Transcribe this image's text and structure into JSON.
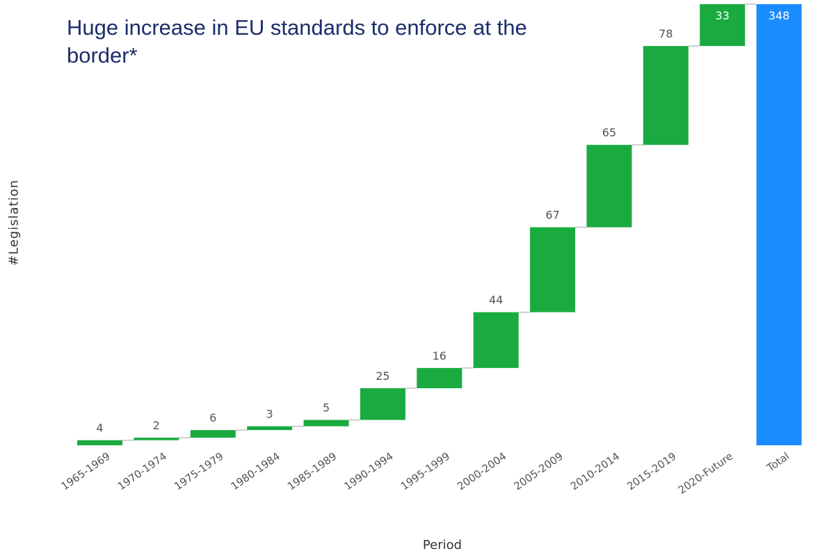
{
  "slide": {
    "title": "Huge increase in EU standards to enforce at the border*"
  },
  "colors": {
    "increase": "#1aab40",
    "total": "#1a8cff",
    "connector": "#bfbfbf",
    "label": "#555555",
    "total_label": "#ffffff"
  },
  "chart_data": {
    "type": "waterfall",
    "xlabel": "Period",
    "ylabel": "#Legislation",
    "categories": [
      "1965-1969",
      "1970-1974",
      "1975-1979",
      "1980-1984",
      "1985-1989",
      "1990-1994",
      "1995-1999",
      "2000-2004",
      "2005-2009",
      "2010-2014",
      "2015-2019",
      "2020-Future",
      "Total"
    ],
    "values": [
      4,
      2,
      6,
      3,
      5,
      25,
      16,
      44,
      67,
      65,
      78,
      33,
      348
    ],
    "total_index": 12,
    "ylim": [
      0,
      348
    ],
    "grid": false,
    "legend": "none"
  }
}
